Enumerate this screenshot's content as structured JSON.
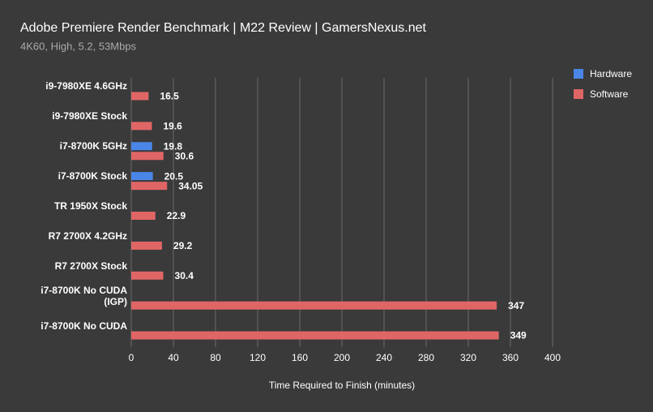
{
  "chart_data": {
    "type": "bar",
    "orientation": "horizontal",
    "title": "Adobe Premiere Render Benchmark | M22 Review | GamersNexus.net",
    "subtitle": "4K60, High, 5.2, 53Mbps",
    "x_label": "Time Required to Finish (minutes)",
    "categories": [
      "i9-7980XE 4.6GHz",
      "i9-7980XE Stock",
      "i7-8700K 5GHz",
      "i7-8700K Stock",
      "TR 1950X Stock",
      "R7 2700X 4.2GHz",
      "R7 2700X Stock",
      "i7-8700K No CUDA (IGP)",
      "i7-8700K No CUDA"
    ],
    "series": [
      {
        "name": "Hardware",
        "color": "#4a86e8",
        "values": [
          null,
          null,
          19.8,
          20.5,
          null,
          null,
          null,
          null,
          null
        ]
      },
      {
        "name": "Software",
        "color": "#e06666",
        "values": [
          16.5,
          19.6,
          30.6,
          34.05,
          22.9,
          29.2,
          30.4,
          347,
          349
        ]
      }
    ],
    "xlim": [
      0,
      400
    ],
    "xticks": [
      0,
      40,
      80,
      120,
      160,
      200,
      240,
      280,
      320,
      360,
      400
    ],
    "grid": true,
    "legend": "top-right"
  }
}
